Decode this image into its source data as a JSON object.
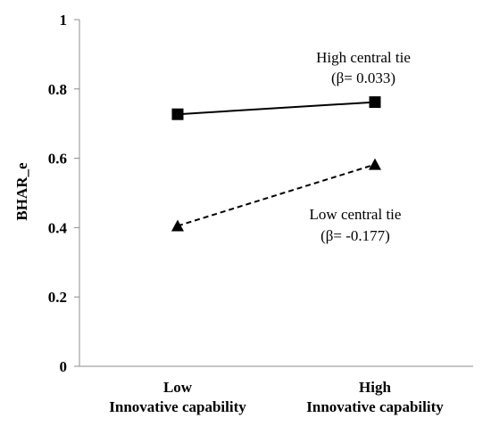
{
  "chart_data": {
    "type": "line",
    "ylabel": "BHAR_e",
    "ylim": [
      0,
      1
    ],
    "yticks": [
      "0",
      "0.2",
      "0.4",
      "0.6",
      "0.8",
      "1"
    ],
    "categories": [
      {
        "line1": "Low",
        "line2": "Innovative capability"
      },
      {
        "line1": "High",
        "line2": "Innovative capability"
      }
    ],
    "grid": false,
    "series": [
      {
        "values": [
          0.727,
          0.762
        ],
        "marker": "square",
        "dash": "solid",
        "annotation": {
          "line1": "High central tie",
          "line2": "(β= 0.033)"
        }
      },
      {
        "values": [
          0.405,
          0.582
        ],
        "marker": "triangle",
        "dash": "dashed",
        "annotation": {
          "line1": "Low central tie",
          "line2": "(β= -0.177)"
        }
      }
    ],
    "colors": {
      "line": "#000000",
      "axis": "#8c8c8c"
    }
  }
}
